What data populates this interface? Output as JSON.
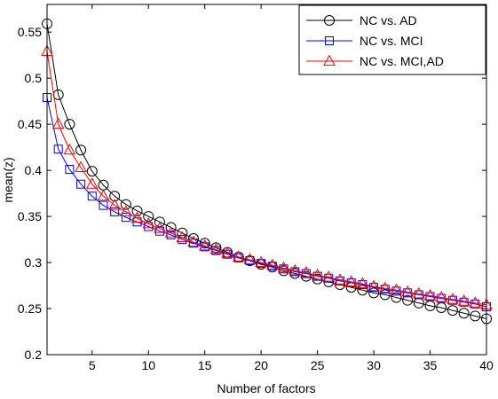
{
  "chart_data": {
    "type": "line",
    "title": "",
    "xlabel": "Number of factors",
    "ylabel": "mean(z)",
    "xlim": [
      1,
      40
    ],
    "ylim": [
      0.2,
      0.58
    ],
    "xticks": [
      5,
      10,
      15,
      20,
      25,
      30,
      35,
      40
    ],
    "yticks": [
      0.2,
      0.25,
      0.3,
      0.35,
      0.4,
      0.45,
      0.5,
      0.55
    ],
    "grid": false,
    "legend_position": "top-right",
    "x": [
      1,
      2,
      3,
      4,
      5,
      6,
      7,
      8,
      9,
      10,
      11,
      12,
      13,
      14,
      15,
      16,
      17,
      18,
      19,
      20,
      21,
      22,
      23,
      24,
      25,
      26,
      27,
      28,
      29,
      30,
      31,
      32,
      33,
      34,
      35,
      36,
      37,
      38,
      39,
      40
    ],
    "series": [
      {
        "name": "NC vs. AD",
        "color": "#000000",
        "marker": "circle",
        "values": [
          0.559,
          0.482,
          0.45,
          0.422,
          0.399,
          0.384,
          0.372,
          0.363,
          0.356,
          0.35,
          0.344,
          0.338,
          0.332,
          0.326,
          0.321,
          0.316,
          0.311,
          0.306,
          0.302,
          0.298,
          0.295,
          0.291,
          0.288,
          0.285,
          0.282,
          0.279,
          0.276,
          0.273,
          0.27,
          0.267,
          0.265,
          0.262,
          0.259,
          0.256,
          0.253,
          0.251,
          0.248,
          0.245,
          0.242,
          0.239
        ]
      },
      {
        "name": "NC vs. MCI",
        "color": "#0000ff",
        "marker": "square",
        "values": [
          0.479,
          0.423,
          0.401,
          0.385,
          0.372,
          0.362,
          0.355,
          0.349,
          0.344,
          0.339,
          0.334,
          0.33,
          0.325,
          0.321,
          0.317,
          0.313,
          0.309,
          0.305,
          0.302,
          0.299,
          0.296,
          0.293,
          0.29,
          0.288,
          0.285,
          0.283,
          0.28,
          0.278,
          0.276,
          0.273,
          0.271,
          0.269,
          0.267,
          0.265,
          0.263,
          0.261,
          0.259,
          0.257,
          0.255,
          0.252
        ]
      },
      {
        "name": "NC vs. MCI,AD",
        "color": "#ff0000",
        "marker": "triangle",
        "values": [
          0.529,
          0.45,
          0.422,
          0.403,
          0.385,
          0.372,
          0.362,
          0.355,
          0.348,
          0.342,
          0.337,
          0.332,
          0.327,
          0.322,
          0.318,
          0.314,
          0.31,
          0.306,
          0.303,
          0.3,
          0.297,
          0.294,
          0.291,
          0.289,
          0.286,
          0.284,
          0.281,
          0.279,
          0.277,
          0.274,
          0.272,
          0.27,
          0.268,
          0.266,
          0.264,
          0.262,
          0.26,
          0.258,
          0.256,
          0.254
        ]
      }
    ]
  }
}
